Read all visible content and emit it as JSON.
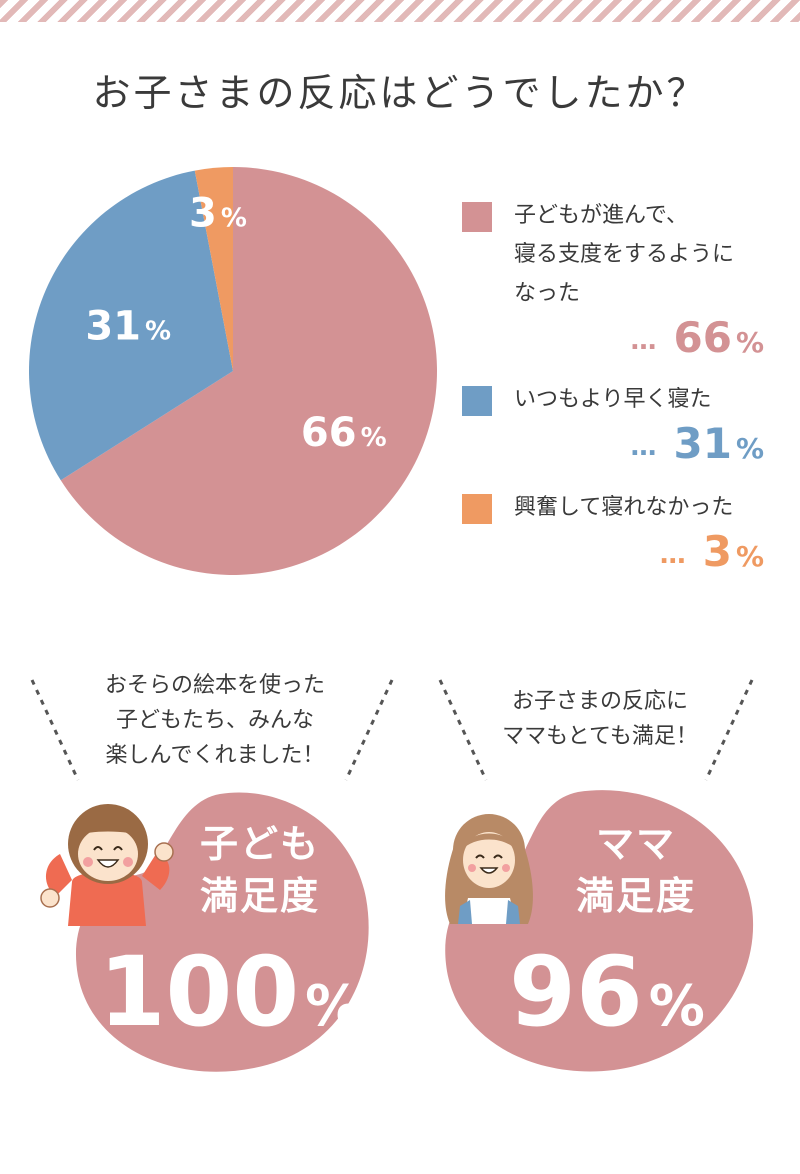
{
  "title": "お子さまの反応はどうでしたか？",
  "chart_data": {
    "type": "pie",
    "unit": "%",
    "categories": [
      "子どもが進んで、\n寝る支度をするように\nなった",
      "いつもより早く寝た",
      "興奮して寝れなかった"
    ],
    "values": [
      66,
      31,
      3
    ],
    "colors": [
      "#d39294",
      "#6f9dc5",
      "#ef9a62"
    ],
    "data_labels": [
      "66",
      "31",
      "3"
    ]
  },
  "legend": {
    "dots": "…",
    "unit": "%",
    "items": [
      {
        "label": "子どもが進んで、\n寝る支度をするように\nなった",
        "value": "66",
        "color": "#d39294"
      },
      {
        "label": "いつもより早く寝た",
        "value": "31",
        "color": "#6f9dc5"
      },
      {
        "label": "興奮して寝れなかった",
        "value": "3",
        "color": "#ef9a62"
      }
    ]
  },
  "satisfaction": {
    "child": {
      "comment": "おそらの絵本を使った\n子どもたち、みんな\n楽しんでくれました！",
      "label": "子ども\n満足度",
      "value": "100",
      "unit": "%"
    },
    "mama": {
      "comment": "お子さまの反応に\nママもとても満足！",
      "label": "ママ\n満足度",
      "value": "96",
      "unit": "%"
    }
  },
  "colors": {
    "accent": "#d39294",
    "blue": "#6f9dc5",
    "orange": "#ef9a62",
    "text": "#3a3a3a"
  }
}
